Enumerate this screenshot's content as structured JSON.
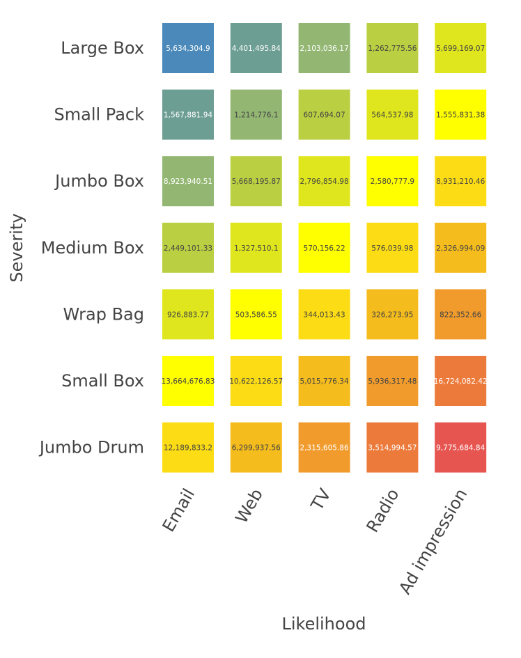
{
  "chart_data": {
    "type": "heatmap",
    "title": "",
    "xlabel": "Likelihood",
    "ylabel": "Severity",
    "x_categories": [
      "Email",
      "Web",
      "TV",
      "Radio",
      "Ad impression"
    ],
    "y_categories": [
      "Large Box",
      "Small Pack",
      "Jumbo Box",
      "Medium Box",
      "Wrap Bag",
      "Small Box",
      "Jumbo Drum"
    ],
    "values": [
      [
        5634304.9,
        4401495.84,
        2103036.17,
        1262775.56,
        5699169.07
      ],
      [
        1567881.94,
        1214776.1,
        607694.07,
        564537.98,
        1555831.38
      ],
      [
        8923940.51,
        5668195.87,
        2796854.98,
        2580777.9,
        8931210.46
      ],
      [
        2449101.33,
        1327510.1,
        570156.22,
        576039.98,
        2326994.09
      ],
      [
        926883.77,
        503586.55,
        344013.43,
        326273.95,
        822352.66
      ],
      [
        13664676.83,
        10622126.57,
        5015776.34,
        5936317.48,
        16724082.42
      ],
      [
        12189833.2,
        6299937.56,
        2315605.86,
        3514994.57,
        9775684.84
      ]
    ],
    "cell_labels": [
      [
        "5,634,304.9",
        "4,401,495.84",
        "2,103,036.17",
        "1,262,775.56",
        "5,699,169.07"
      ],
      [
        "1,567,881.94",
        "1,214,776.1",
        "607,694.07",
        "564,537.98",
        "1,555,831.38"
      ],
      [
        "8,923,940.51",
        "5,668,195.87",
        "2,796,854.98",
        "2,580,777.9",
        "8,931,210.46"
      ],
      [
        "2,449,101.33",
        "1,327,510.1",
        "570,156.22",
        "576,039.98",
        "2,326,994.09"
      ],
      [
        "926,883.77",
        "503,586.55",
        "344,013.43",
        "326,273.95",
        "822,352.66"
      ],
      [
        "13,664,676.83",
        "10,622,126.57",
        "5,015,776.34",
        "5,936,317.48",
        "16,724,082.42"
      ],
      [
        "12,189,833.2",
        "6,299,937.56",
        "2,315,605.86",
        "3,514,994.57",
        "9,775,684.84"
      ]
    ],
    "cell_colors": [
      [
        "#4a89b9",
        "#6d9e93",
        "#93b773",
        "#bbcf42",
        "#dfe61d"
      ],
      [
        "#6d9e93",
        "#93b773",
        "#bbcf42",
        "#dfe61d",
        "#ffff00"
      ],
      [
        "#93b773",
        "#bbcf42",
        "#dfe61d",
        "#ffff00",
        "#fcdc14"
      ],
      [
        "#bbcf42",
        "#dfe61d",
        "#ffff00",
        "#fcdc14",
        "#f5bc1d"
      ],
      [
        "#dfe61d",
        "#ffff00",
        "#fcdc14",
        "#f5bc1d",
        "#f09b2c"
      ],
      [
        "#ffff00",
        "#fcdc14",
        "#f5bc1d",
        "#f09b2c",
        "#ec7a3b"
      ],
      [
        "#fcdc14",
        "#f5bc1d",
        "#f09b2c",
        "#ec7a3b",
        "#e65550"
      ]
    ],
    "label_colors": [
      [
        "#ffffff",
        "#ffffff",
        "#ffffff",
        "#444444",
        "#444444"
      ],
      [
        "#ffffff",
        "#444444",
        "#444444",
        "#444444",
        "#444444"
      ],
      [
        "#ffffff",
        "#444444",
        "#444444",
        "#444444",
        "#444444"
      ],
      [
        "#444444",
        "#444444",
        "#444444",
        "#444444",
        "#444444"
      ],
      [
        "#444444",
        "#444444",
        "#444444",
        "#444444",
        "#444444"
      ],
      [
        "#444444",
        "#444444",
        "#444444",
        "#444444",
        "#ffffff"
      ],
      [
        "#444444",
        "#444444",
        "#ffffff",
        "#ffffff",
        "#ffffff"
      ]
    ],
    "grid": false,
    "legend": "none"
  }
}
